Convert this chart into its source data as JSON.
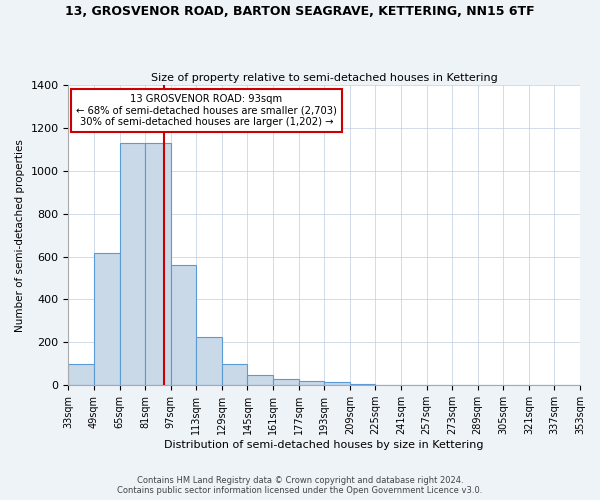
{
  "title": "13, GROSVENOR ROAD, BARTON SEAGRAVE, KETTERING, NN15 6TF",
  "subtitle": "Size of property relative to semi-detached houses in Kettering",
  "xlabel": "Distribution of semi-detached houses by size in Kettering",
  "ylabel": "Number of semi-detached properties",
  "bin_edges": [
    33,
    49,
    65,
    81,
    97,
    113,
    129,
    145,
    161,
    177,
    193,
    209,
    225,
    241,
    257,
    273,
    289,
    305,
    321,
    337,
    353
  ],
  "bin_counts": [
    100,
    615,
    1130,
    1130,
    560,
    225,
    100,
    50,
    30,
    20,
    15,
    5,
    0,
    0,
    0,
    0,
    0,
    0,
    0,
    0
  ],
  "bar_color": "#c9d9e8",
  "bar_edge_color": "#5b9bd5",
  "property_value": 93,
  "vline_color": "#cc0000",
  "annotation_title": "13 GROSVENOR ROAD: 93sqm",
  "annotation_line1": "← 68% of semi-detached houses are smaller (2,703)",
  "annotation_line2": "30% of semi-detached houses are larger (1,202) →",
  "annotation_box_color": "#ffffff",
  "annotation_box_edge_color": "#cc0000",
  "ylim": [
    0,
    1400
  ],
  "yticks": [
    0,
    200,
    400,
    600,
    800,
    1000,
    1200,
    1400
  ],
  "tick_labels": [
    "33sqm",
    "49sqm",
    "65sqm",
    "81sqm",
    "97sqm",
    "113sqm",
    "129sqm",
    "145sqm",
    "161sqm",
    "177sqm",
    "193sqm",
    "209sqm",
    "225sqm",
    "241sqm",
    "257sqm",
    "273sqm",
    "289sqm",
    "305sqm",
    "321sqm",
    "337sqm",
    "353sqm"
  ],
  "footer1": "Contains HM Land Registry data © Crown copyright and database right 2024.",
  "footer2": "Contains public sector information licensed under the Open Government Licence v3.0.",
  "bg_color": "#eef3f8",
  "plot_bg_color": "#ffffff"
}
